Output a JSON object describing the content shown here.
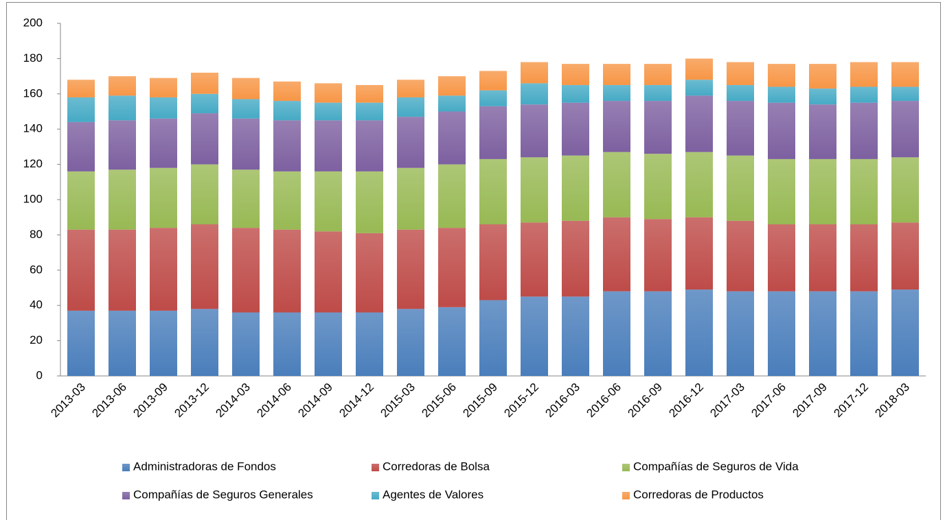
{
  "chart_data": {
    "type": "bar",
    "stacked": true,
    "categories": [
      "2013-03",
      "2013-06",
      "2013-09",
      "2013-12",
      "2014-03",
      "2014-06",
      "2014-09",
      "2014-12",
      "2015-03",
      "2015-06",
      "2015-09",
      "2015-12",
      "2016-03",
      "2016-06",
      "2016-09",
      "2016-12",
      "2017-03",
      "2017-06",
      "2017-09",
      "2017-12",
      "2018-03"
    ],
    "series": [
      {
        "name": "Administradoras de Fondos",
        "color": "#4a7ebb",
        "values": [
          37,
          37,
          37,
          38,
          36,
          36,
          36,
          36,
          38,
          39,
          43,
          45,
          45,
          48,
          48,
          49,
          48,
          48,
          48,
          48,
          49
        ]
      },
      {
        "name": "Corredoras de Bolsa",
        "color": "#be4b48",
        "values": [
          46,
          46,
          47,
          48,
          48,
          47,
          46,
          45,
          45,
          45,
          43,
          42,
          43,
          42,
          41,
          41,
          40,
          38,
          38,
          38,
          38
        ]
      },
      {
        "name": "Compañías de Seguros de Vida",
        "color": "#98b954",
        "values": [
          33,
          34,
          34,
          34,
          33,
          33,
          34,
          35,
          35,
          36,
          37,
          37,
          37,
          37,
          37,
          37,
          37,
          37,
          37,
          37,
          37
        ]
      },
      {
        "name": "Compañías de Seguros Generales",
        "color": "#7d60a0",
        "values": [
          28,
          28,
          28,
          29,
          29,
          29,
          29,
          29,
          29,
          30,
          30,
          30,
          30,
          29,
          30,
          32,
          31,
          32,
          31,
          32,
          32
        ]
      },
      {
        "name": "Agentes de Valores",
        "color": "#46aac5",
        "values": [
          14,
          14,
          12,
          11,
          11,
          11,
          10,
          10,
          11,
          9,
          9,
          12,
          10,
          9,
          9,
          9,
          9,
          9,
          9,
          9,
          8
        ]
      },
      {
        "name": "Corredoras de Productos",
        "color": "#f79646",
        "values": [
          10,
          11,
          11,
          12,
          12,
          11,
          11,
          10,
          10,
          11,
          11,
          12,
          12,
          12,
          12,
          12,
          13,
          13,
          14,
          14,
          14
        ]
      }
    ],
    "ylim": [
      0,
      200
    ],
    "yticks": [
      0,
      20,
      40,
      60,
      80,
      100,
      120,
      140,
      160,
      180,
      200
    ],
    "grid": false
  }
}
